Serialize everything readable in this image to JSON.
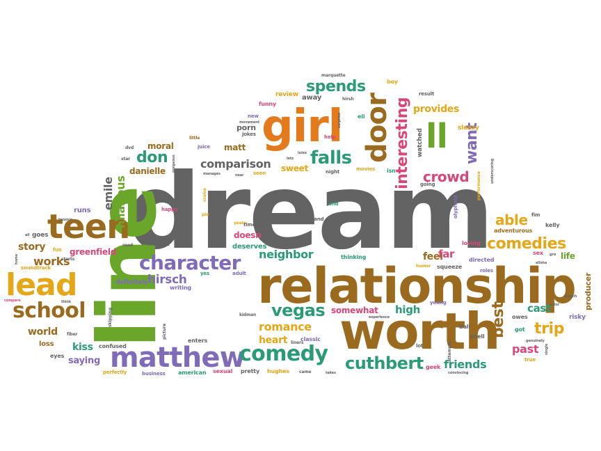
{
  "palette": {
    "gray": "#636363",
    "green": "#6aa62a",
    "orange": "#e37a1c",
    "gold": "#e3a717",
    "brown": "#9a6a1e",
    "teal": "#2a9a78",
    "purple": "#7f6bb8",
    "pink": "#d8477a",
    "olive": "#8a8a2a",
    "blue": "#3f6fb5"
  },
  "words": [
    {
      "text": "dream",
      "color": "gray"
    },
    {
      "text": "line",
      "color": "green"
    },
    {
      "text": "relationship",
      "color": "brown"
    },
    {
      "text": "worth",
      "color": "brown"
    },
    {
      "text": "girl",
      "color": "orange"
    },
    {
      "text": "teen",
      "color": "brown"
    },
    {
      "text": "lead",
      "color": "gold"
    },
    {
      "text": "matthew",
      "color": "purple"
    },
    {
      "text": "school",
      "color": "brown"
    },
    {
      "text": "comedy",
      "color": "teal"
    },
    {
      "text": "character",
      "color": "purple"
    },
    {
      "text": "door",
      "color": "brown"
    },
    {
      "text": "ll",
      "color": "green"
    },
    {
      "text": "interesting",
      "color": "pink"
    },
    {
      "text": "falls",
      "color": "teal"
    },
    {
      "text": "spends",
      "color": "teal"
    },
    {
      "text": "comedies",
      "color": "gold"
    },
    {
      "text": "vegas",
      "color": "teal"
    },
    {
      "text": "cuthbert",
      "color": "teal"
    },
    {
      "text": "best",
      "color": "brown"
    },
    {
      "text": "trip",
      "color": "gold"
    },
    {
      "text": "crowd",
      "color": "pink"
    },
    {
      "text": "want",
      "color": "purple"
    },
    {
      "text": "don",
      "color": "teal"
    },
    {
      "text": "comparison",
      "color": "gray"
    },
    {
      "text": "hilarious",
      "color": "green"
    },
    {
      "text": "emile",
      "color": "gray"
    },
    {
      "text": "able",
      "color": "gold"
    },
    {
      "text": "romance",
      "color": "gold"
    },
    {
      "text": "neighbor",
      "color": "teal"
    },
    {
      "text": "hirsch",
      "color": "purple"
    },
    {
      "text": "works",
      "color": "brown"
    },
    {
      "text": "story",
      "color": "brown"
    },
    {
      "text": "provides",
      "color": "gold"
    },
    {
      "text": "friends",
      "color": "teal"
    },
    {
      "text": "past",
      "color": "pink"
    },
    {
      "text": "high",
      "color": "teal"
    },
    {
      "text": "cast",
      "color": "teal"
    },
    {
      "text": "heart",
      "color": "gold"
    },
    {
      "text": "feel",
      "color": "brown"
    },
    {
      "text": "far",
      "color": "pink"
    },
    {
      "text": "world",
      "color": "brown"
    },
    {
      "text": "kiss",
      "color": "teal"
    },
    {
      "text": "saying",
      "color": "purple"
    },
    {
      "text": "greenfield",
      "color": "pink"
    },
    {
      "text": "danielle",
      "color": "brown"
    },
    {
      "text": "matt",
      "color": "brown"
    },
    {
      "text": "moral",
      "color": "brown"
    },
    {
      "text": "porn",
      "color": "gray"
    },
    {
      "text": "sweet",
      "color": "gold"
    },
    {
      "text": "somewhat",
      "color": "pink"
    },
    {
      "text": "doesn",
      "color": "pink"
    },
    {
      "text": "deserves",
      "color": "teal"
    },
    {
      "text": "runs",
      "color": "purple"
    },
    {
      "text": "goes",
      "color": "gray"
    },
    {
      "text": "definitely",
      "color": "purple"
    },
    {
      "text": "loss",
      "color": "brown"
    },
    {
      "text": "eyes",
      "color": "gray"
    },
    {
      "text": "confused",
      "color": "gray"
    },
    {
      "text": "writing",
      "color": "purple"
    },
    {
      "text": "enters",
      "color": "gray"
    },
    {
      "text": "sexual",
      "color": "pink"
    },
    {
      "text": "pretty",
      "color": "gray"
    },
    {
      "text": "hughes",
      "color": "gold"
    },
    {
      "text": "american",
      "color": "teal"
    },
    {
      "text": "business",
      "color": "purple"
    },
    {
      "text": "perfectly",
      "color": "gold"
    },
    {
      "text": "classic",
      "color": "purple"
    },
    {
      "text": "thinking",
      "color": "teal"
    },
    {
      "text": "directed",
      "color": "purple"
    },
    {
      "text": "squeeze",
      "color": "gray"
    },
    {
      "text": "loving",
      "color": "pink"
    },
    {
      "text": "adventurous",
      "color": "brown"
    },
    {
      "text": "kelly",
      "color": "gray"
    },
    {
      "text": "life",
      "color": "green"
    },
    {
      "text": "producer",
      "color": "brown"
    },
    {
      "text": "risky",
      "color": "purple"
    },
    {
      "text": "owes",
      "color": "gray"
    },
    {
      "text": "got",
      "color": "teal"
    },
    {
      "text": "ball",
      "color": "gray"
    },
    {
      "text": "shell",
      "color": "gray"
    },
    {
      "text": "young",
      "color": "purple"
    },
    {
      "text": "geek",
      "color": "pink"
    },
    {
      "text": "lot",
      "color": "gray"
    },
    {
      "text": "true",
      "color": "gold"
    },
    {
      "text": "sex",
      "color": "pink"
    },
    {
      "text": "roles",
      "color": "purple"
    },
    {
      "text": "watched",
      "color": "gray"
    },
    {
      "text": "sleazy",
      "color": "gold"
    },
    {
      "text": "result",
      "color": "gray"
    },
    {
      "text": "review",
      "color": "gold"
    },
    {
      "text": "funny",
      "color": "pink"
    },
    {
      "text": "away",
      "color": "gray"
    },
    {
      "text": "eli",
      "color": "teal"
    },
    {
      "text": "boy",
      "color": "gold"
    },
    {
      "text": "marquette",
      "color": "gray"
    },
    {
      "text": "hirsh",
      "color": "gray"
    },
    {
      "text": "jokes",
      "color": "gray"
    },
    {
      "text": "new",
      "color": "purple"
    },
    {
      "text": "help",
      "color": "pink"
    },
    {
      "text": "juice",
      "color": "purple"
    },
    {
      "text": "little",
      "color": "brown"
    },
    {
      "text": "night",
      "color": "gray"
    },
    {
      "text": "movies",
      "color": "gold"
    },
    {
      "text": "isn",
      "color": "teal"
    },
    {
      "text": "going",
      "color": "gray"
    },
    {
      "text": "seen",
      "color": "gold"
    },
    {
      "text": "end",
      "color": "teal"
    },
    {
      "text": "stand",
      "color": "gray"
    },
    {
      "text": "years",
      "color": "gold"
    },
    {
      "text": "times",
      "color": "gray"
    },
    {
      "text": "adult",
      "color": "purple"
    },
    {
      "text": "yes",
      "color": "teal"
    },
    {
      "text": "happy",
      "color": "pink"
    },
    {
      "text": "moment",
      "color": "gray"
    },
    {
      "text": "road",
      "color": "gray"
    },
    {
      "text": "fun",
      "color": "gold"
    },
    {
      "text": "starts",
      "color": "gray"
    },
    {
      "text": "soundtrack",
      "color": "gold"
    },
    {
      "text": "compare",
      "color": "pink"
    },
    {
      "text": "kidman",
      "color": "gray"
    },
    {
      "text": "experience",
      "color": "gray"
    },
    {
      "text": "liners",
      "color": "gray"
    },
    {
      "text": "came",
      "color": "gray"
    },
    {
      "text": "takes",
      "color": "gray"
    },
    {
      "text": "attempts",
      "color": "gray"
    },
    {
      "text": "convincing",
      "color": "gray"
    },
    {
      "text": "genuinely",
      "color": "gray"
    },
    {
      "text": "actor",
      "color": "gray"
    },
    {
      "text": "speech",
      "color": "gray"
    },
    {
      "text": "fim",
      "color": "gray"
    },
    {
      "text": "tension",
      "color": "gray"
    },
    {
      "text": "fiber",
      "color": "gray"
    },
    {
      "text": "think",
      "color": "gray"
    },
    {
      "text": "skipping",
      "color": "gray"
    },
    {
      "text": "picture",
      "color": "gray"
    },
    {
      "text": "olyphant",
      "color": "purple"
    },
    {
      "text": "humor",
      "color": "gold"
    },
    {
      "text": "cruise",
      "color": "gold"
    },
    {
      "text": "pie",
      "color": "gold"
    },
    {
      "text": "adorable",
      "color": "gray"
    },
    {
      "text": "manages",
      "color": "gray"
    },
    {
      "text": "movement",
      "color": "gray"
    },
    {
      "text": "performance",
      "color": "gold"
    },
    {
      "text": "underscoring",
      "color": "gray"
    },
    {
      "text": "surprise",
      "color": "gray"
    },
    {
      "text": "star",
      "color": "gray"
    },
    {
      "text": "gorgeous",
      "color": "gray"
    },
    {
      "text": "dvd",
      "color": "gray"
    },
    {
      "text": "letz",
      "color": "gray"
    },
    {
      "text": "near",
      "color": "gray"
    },
    {
      "text": "luise",
      "color": "gray"
    },
    {
      "text": "all",
      "color": "gray"
    },
    {
      "text": "home",
      "color": "gray"
    },
    {
      "text": "single",
      "color": "gray"
    },
    {
      "text": "elisha",
      "color": "gray"
    },
    {
      "text": "gro",
      "color": "gray"
    }
  ]
}
